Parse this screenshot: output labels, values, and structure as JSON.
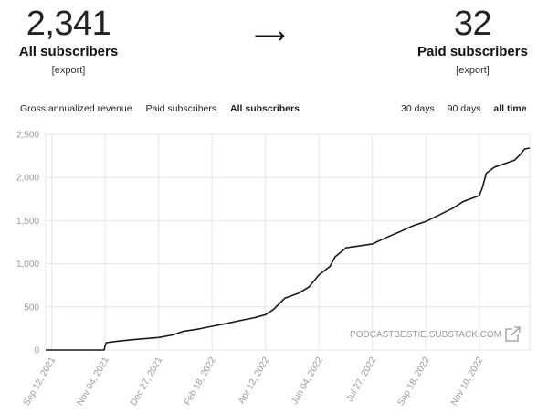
{
  "left_stat": {
    "value": "2,341",
    "label": "All subscribers",
    "export": "[export]"
  },
  "arrow": "⟶",
  "right_stat": {
    "value": "32",
    "label": "Paid subscribers",
    "export": "[export]"
  },
  "metric_tabs": [
    {
      "label": "Gross annualized revenue",
      "active": false
    },
    {
      "label": "Paid subscribers",
      "active": false
    },
    {
      "label": "All subscribers",
      "active": true
    }
  ],
  "range_tabs": [
    {
      "label": "30 days",
      "active": false
    },
    {
      "label": "90 days",
      "active": false
    },
    {
      "label": "all time",
      "active": true
    }
  ],
  "watermark": "PODCASTBESTIE.SUBSTACK.COM",
  "colors": {
    "line": "#1a1a1a",
    "grid": "#e6e6e6",
    "axis_text": "#9a9a9a"
  },
  "chart_data": {
    "type": "line",
    "title": "",
    "xlabel": "",
    "ylabel": "",
    "ylim": [
      0,
      2500
    ],
    "yticks": [
      0,
      500,
      1000,
      1500,
      2000,
      2500
    ],
    "ytick_labels": [
      "0",
      "500",
      "1,000",
      "1,500",
      "2,000",
      "2,500"
    ],
    "xticks": [
      "2021-09-12",
      "2021-11-04",
      "2021-12-27",
      "2022-02-18",
      "2022-04-12",
      "2022-06-04",
      "2022-07-27",
      "2022-09-18",
      "2022-11-10"
    ],
    "xtick_labels": [
      "Sep 12, 2021",
      "Nov 04, 2021",
      "Dec 27, 2021",
      "Feb 18, 2022",
      "Apr 12, 2022",
      "Jun 04, 2022",
      "Jul 27, 2022",
      "Sep 18, 2022",
      "Nov 10, 2022"
    ],
    "xlim": [
      "2021-09-06",
      "2022-12-30"
    ],
    "grid": true,
    "series": [
      {
        "x": [
          "2021-09-06",
          "2021-11-03",
          "2021-11-04",
          "2021-11-05",
          "2021-11-15",
          "2021-12-01",
          "2021-12-27",
          "2022-01-10",
          "2022-01-20",
          "2022-02-05",
          "2022-02-18",
          "2022-03-01",
          "2022-03-15",
          "2022-04-01",
          "2022-04-12",
          "2022-04-20",
          "2022-05-01",
          "2022-05-15",
          "2022-05-25",
          "2022-06-04",
          "2022-06-15",
          "2022-06-20",
          "2022-07-01",
          "2022-07-10",
          "2022-07-27",
          "2022-08-10",
          "2022-08-25",
          "2022-09-05",
          "2022-09-18",
          "2022-10-01",
          "2022-10-15",
          "2022-10-25",
          "2022-11-10",
          "2022-11-13",
          "2022-11-17",
          "2022-11-25",
          "2022-12-05",
          "2022-12-15",
          "2022-12-20",
          "2022-12-25",
          "2022-12-30"
        ],
        "y": [
          0,
          0,
          50,
          85,
          100,
          120,
          145,
          175,
          215,
          245,
          275,
          300,
          335,
          375,
          410,
          470,
          600,
          660,
          730,
          870,
          970,
          1080,
          1185,
          1200,
          1230,
          1305,
          1380,
          1440,
          1490,
          1565,
          1645,
          1720,
          1790,
          1880,
          2050,
          2120,
          2160,
          2200,
          2260,
          2330,
          2341
        ]
      }
    ]
  }
}
